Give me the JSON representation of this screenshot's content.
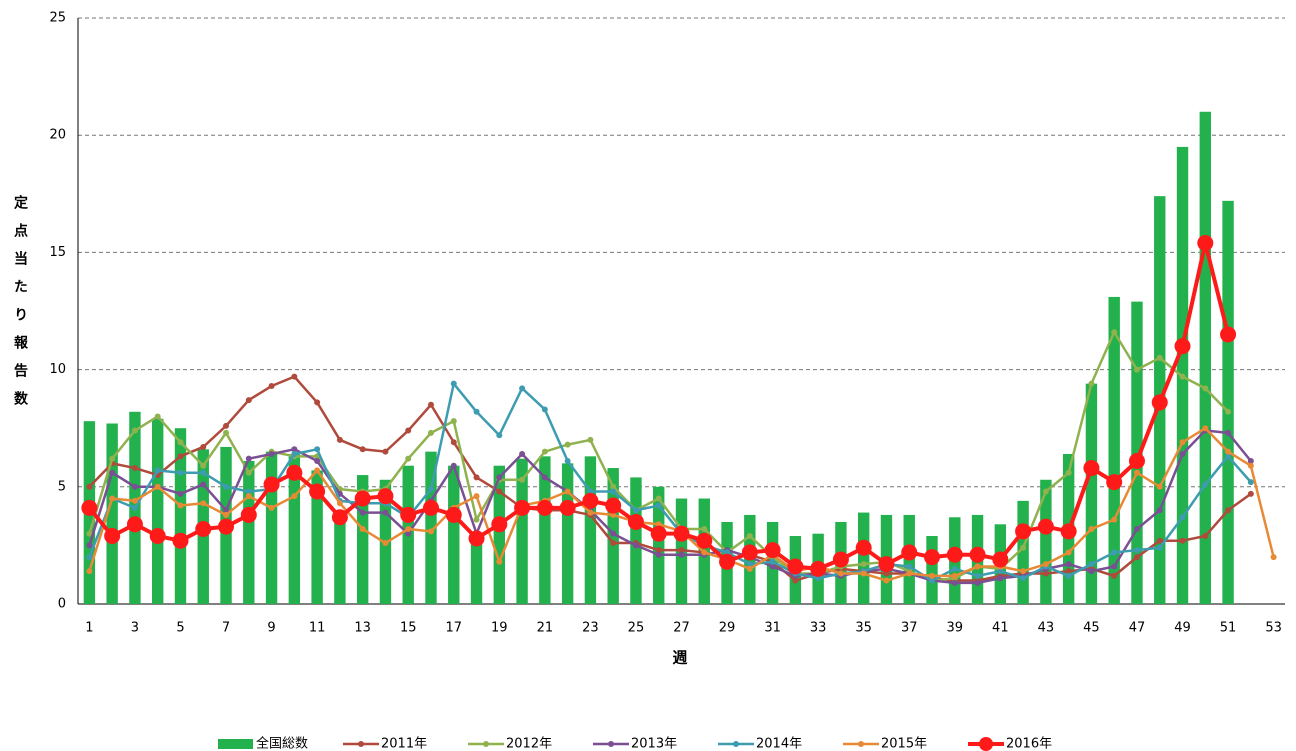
{
  "chart_data": {
    "type": "bar_line",
    "y_label": "定点当たり報告数",
    "x_label": "週",
    "categories": [
      1,
      null,
      3,
      null,
      5,
      null,
      7,
      null,
      9,
      null,
      11,
      null,
      13,
      null,
      15,
      null,
      17,
      null,
      19,
      null,
      21,
      null,
      23,
      null,
      25,
      null,
      27,
      null,
      29,
      null,
      31,
      null,
      33,
      null,
      35,
      null,
      37,
      null,
      39,
      null,
      41,
      null,
      43,
      null,
      45,
      null,
      47,
      null,
      49,
      null,
      51,
      null,
      53
    ],
    "ylim": [
      0,
      25
    ],
    "yticks": [
      0,
      5,
      10,
      15,
      20,
      25
    ],
    "grid": true,
    "legend": "bottom",
    "series": [
      {
        "name": "全国総数",
        "mark": "bar",
        "color": "#22b14c",
        "values": [
          7.8,
          7.7,
          8.2,
          7.9,
          7.5,
          6.6,
          6.7,
          6.1,
          6.5,
          6.4,
          5.7,
          4.0,
          5.5,
          5.3,
          5.9,
          6.5,
          5.9,
          3.0,
          5.9,
          6.2,
          6.3,
          6.0,
          6.3,
          5.8,
          5.4,
          5.0,
          4.5,
          4.5,
          3.5,
          3.8,
          3.5,
          2.9,
          3.0,
          3.5,
          3.9,
          3.8,
          3.8,
          2.9,
          3.7,
          3.8,
          3.4,
          4.4,
          5.3,
          6.4,
          9.4,
          13.1,
          12.9,
          17.4,
          19.5,
          21.0,
          17.2,
          null,
          null
        ]
      },
      {
        "name": "2011年",
        "mark": "line",
        "color": "#b04a3c",
        "values": [
          5.0,
          6.0,
          5.8,
          5.5,
          6.3,
          6.7,
          7.6,
          8.7,
          9.3,
          9.7,
          8.6,
          7.0,
          6.6,
          6.5,
          7.4,
          8.5,
          6.9,
          5.4,
          4.8,
          4.1,
          4.0,
          4.0,
          3.8,
          2.6,
          2.6,
          2.3,
          2.3,
          2.2,
          1.9,
          2.1,
          1.8,
          1.0,
          1.3,
          1.5,
          1.4,
          1.3,
          1.3,
          1.1,
          1.0,
          1.0,
          1.2,
          1.3,
          1.3,
          1.4,
          1.5,
          1.2,
          2.0,
          2.7,
          2.7,
          2.9,
          4.0,
          4.7,
          null
        ]
      },
      {
        "name": "2012年",
        "mark": "line",
        "color": "#8fb24f",
        "values": [
          3.0,
          6.2,
          7.4,
          8.0,
          6.9,
          5.9,
          7.3,
          5.6,
          6.5,
          6.3,
          6.3,
          4.9,
          4.8,
          4.9,
          6.2,
          7.3,
          7.8,
          3.6,
          5.3,
          5.3,
          6.5,
          6.8,
          7.0,
          5.0,
          4.0,
          4.5,
          3.2,
          3.2,
          2.2,
          2.9,
          2.0,
          1.3,
          1.3,
          1.6,
          1.7,
          1.8,
          1.4,
          1.0,
          1.1,
          1.6,
          1.5,
          2.4,
          4.8,
          5.6,
          9.4,
          11.6,
          10.0,
          10.5,
          9.7,
          9.2,
          8.2,
          null,
          null
        ]
      },
      {
        "name": "2013年",
        "mark": "line",
        "color": "#7a4f93",
        "values": [
          2.5,
          5.6,
          5.0,
          5.0,
          4.7,
          5.1,
          4.0,
          6.2,
          6.4,
          6.6,
          6.1,
          4.7,
          3.9,
          3.9,
          3.0,
          4.4,
          5.9,
          3.0,
          5.4,
          6.4,
          5.4,
          4.8,
          4.0,
          3.0,
          2.5,
          2.1,
          2.1,
          2.1,
          2.3,
          2.0,
          1.6,
          1.2,
          1.3,
          1.2,
          1.4,
          1.5,
          1.3,
          1.0,
          0.9,
          0.9,
          1.1,
          1.2,
          1.5,
          1.7,
          1.4,
          1.6,
          3.2,
          4.0,
          6.4,
          7.4,
          7.3,
          6.1,
          null
        ]
      },
      {
        "name": "2014年",
        "mark": "line",
        "color": "#3d9cb0",
        "values": [
          2.0,
          4.5,
          4.1,
          5.7,
          5.6,
          5.6,
          5.0,
          4.8,
          4.9,
          6.4,
          6.6,
          4.4,
          4.3,
          4.3,
          3.7,
          4.9,
          9.4,
          8.2,
          7.2,
          9.2,
          8.3,
          6.1,
          4.8,
          4.8,
          4.0,
          4.2,
          3.0,
          2.5,
          2.2,
          1.7,
          1.8,
          1.3,
          1.1,
          1.3,
          1.4,
          1.7,
          1.6,
          1.0,
          1.5,
          1.2,
          1.4,
          1.1,
          1.6,
          1.2,
          1.7,
          2.2,
          2.3,
          2.4,
          3.7,
          5.1,
          6.3,
          5.2,
          null
        ]
      },
      {
        "name": "2015年",
        "mark": "line",
        "color": "#e88a35",
        "values": [
          1.4,
          4.5,
          4.4,
          5.0,
          4.2,
          4.3,
          3.8,
          4.6,
          4.1,
          4.6,
          5.7,
          4.3,
          3.2,
          2.6,
          3.2,
          3.1,
          4.1,
          4.6,
          1.8,
          4.2,
          4.4,
          4.8,
          3.9,
          3.8,
          3.5,
          3.4,
          3.1,
          2.2,
          1.9,
          1.5,
          2.1,
          1.4,
          1.6,
          1.3,
          1.3,
          1.0,
          1.3,
          1.2,
          1.2,
          1.6,
          1.6,
          1.4,
          1.7,
          2.2,
          3.2,
          3.6,
          5.6,
          5.0,
          6.9,
          7.5,
          6.5,
          5.9,
          2.0
        ]
      },
      {
        "name": "2016年",
        "mark": "line",
        "color": "#ff1a1a",
        "values": [
          4.1,
          2.9,
          3.4,
          2.9,
          2.7,
          3.2,
          3.3,
          3.8,
          5.1,
          5.6,
          4.8,
          3.7,
          4.5,
          4.6,
          3.8,
          4.1,
          3.8,
          2.8,
          3.4,
          4.1,
          4.1,
          4.1,
          4.4,
          4.2,
          3.5,
          3.0,
          3.0,
          2.7,
          1.8,
          2.2,
          2.3,
          1.6,
          1.5,
          1.9,
          2.4,
          1.7,
          2.2,
          2.0,
          2.1,
          2.1,
          1.9,
          3.1,
          3.3,
          3.1,
          5.8,
          5.2,
          6.1,
          8.6,
          11.0,
          15.4,
          11.5,
          null,
          null
        ]
      }
    ]
  }
}
